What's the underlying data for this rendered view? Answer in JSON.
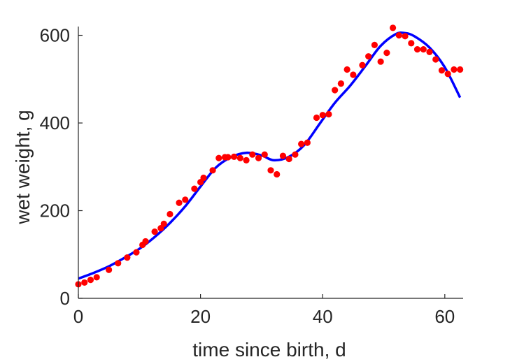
{
  "chart_data": {
    "type": "scatter",
    "xlabel": "time since birth, d",
    "ylabel": "wet weight, g",
    "xlim": [
      0,
      63
    ],
    "ylim": [
      0,
      620
    ],
    "xticks": [
      0,
      20,
      40,
      60
    ],
    "yticks": [
      0,
      200,
      400,
      600
    ],
    "grid": false,
    "series": [
      {
        "kind": "points",
        "color": "#ff0000",
        "x": [
          0,
          1,
          2,
          3,
          5,
          6.5,
          8,
          9.5,
          10.5,
          11,
          12.5,
          13.5,
          14,
          15,
          16.5,
          17.5,
          19,
          20,
          20.5,
          22,
          23,
          24,
          24.5,
          25.5,
          26.5,
          27.5,
          28.5,
          29.5,
          30.5,
          31.5,
          32.5,
          33.5,
          34.5,
          35.5,
          36.5,
          37.5,
          39,
          40,
          41,
          42,
          43,
          44,
          45,
          46.5,
          47.5,
          48.5,
          49.5,
          50.5,
          51.5,
          52.5,
          53.5,
          54.5,
          55.5,
          56.5,
          57.5,
          58.5,
          59.5,
          60.5,
          61.5,
          62.5
        ],
        "y": [
          32,
          36,
          42,
          48,
          65,
          80,
          93,
          105,
          122,
          130,
          152,
          160,
          170,
          192,
          218,
          225,
          250,
          265,
          275,
          292,
          320,
          322,
          322,
          323,
          320,
          315,
          328,
          320,
          328,
          292,
          283,
          325,
          318,
          328,
          352,
          355,
          412,
          418,
          420,
          475,
          490,
          522,
          510,
          532,
          552,
          578,
          540,
          560,
          617,
          600,
          598,
          582,
          568,
          568,
          562,
          545,
          520,
          512,
          522,
          522
        ]
      },
      {
        "kind": "line",
        "color": "#0000ff",
        "x": [
          0,
          2.5,
          5,
          7.5,
          10,
          12.5,
          15,
          17.5,
          20,
          22.5,
          25,
          27.5,
          30,
          32,
          34.5,
          37,
          39.5,
          42,
          44.5,
          47,
          49.5,
          52,
          53.5,
          55,
          57.5,
          60,
          62.5
        ],
        "y": [
          45,
          58,
          73,
          92,
          113,
          140,
          172,
          210,
          255,
          298,
          322,
          332,
          326,
          315,
          323,
          350,
          398,
          446,
          485,
          530,
          576,
          603,
          605,
          598,
          572,
          527,
          458
        ]
      }
    ]
  }
}
